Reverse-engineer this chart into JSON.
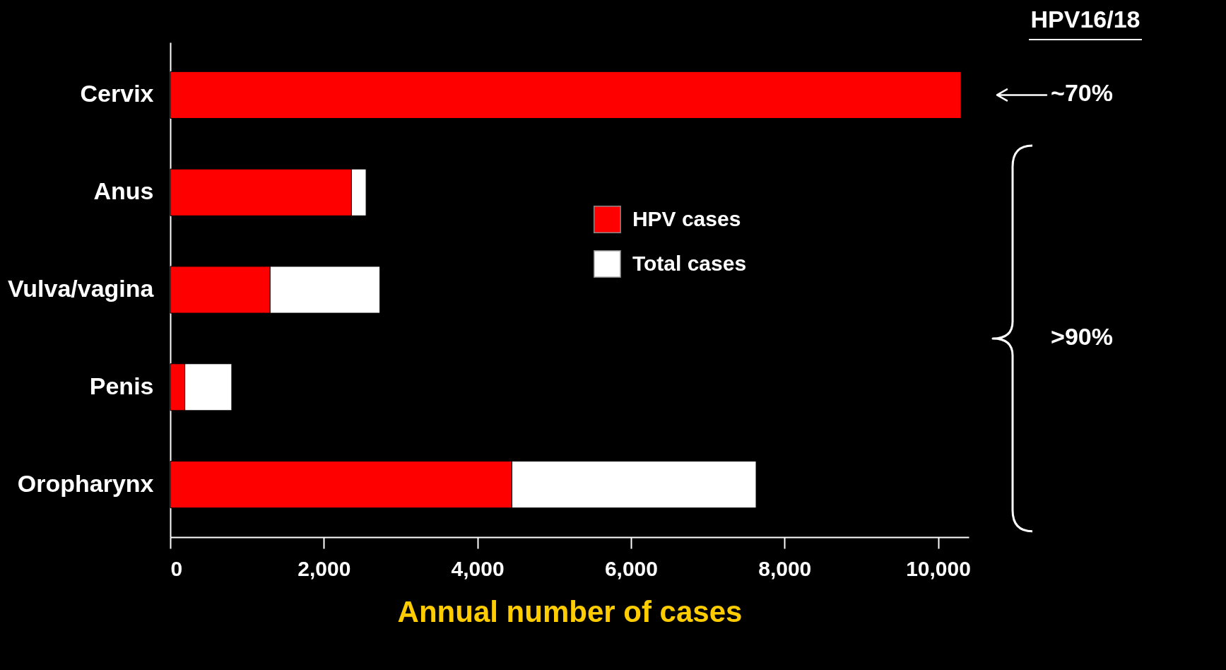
{
  "chart_data": {
    "type": "bar",
    "orientation": "horizontal",
    "stacked": true,
    "categories": [
      "Cervix",
      "Anus",
      "Vulva/vagina",
      "Penis",
      "Oropharynx"
    ],
    "series": [
      {
        "name": "HPV cases",
        "color": "#ff0000",
        "values": [
          10300,
          2360,
          1300,
          190,
          4450
        ]
      },
      {
        "name": "Total cases",
        "color": "#ffffff",
        "values": [
          null,
          190,
          1430,
          610,
          3180
        ]
      }
    ],
    "xlabel": "Annual number of cases",
    "xlim": [
      0,
      10400
    ],
    "xticks": [
      0,
      {
        "value": 2000,
        "label": "2,000"
      },
      {
        "value": 4000,
        "label": "4,000"
      },
      {
        "value": 6000,
        "label": "6,000"
      },
      {
        "value": 8000,
        "label": "8,000"
      },
      {
        "value": 10000,
        "label": "10,000"
      }
    ],
    "legend": "right",
    "grid": false,
    "annotations": [
      "HPV16/18",
      "~70%",
      ">90%"
    ]
  }
}
